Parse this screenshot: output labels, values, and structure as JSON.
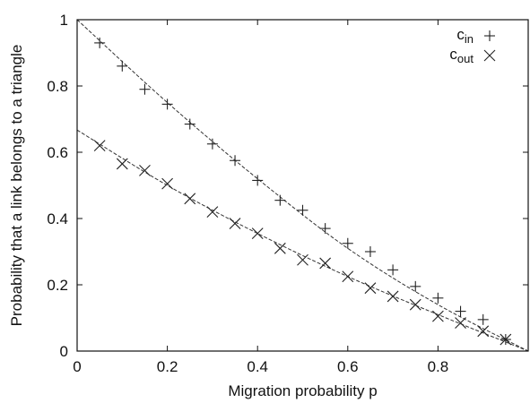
{
  "chart_data": {
    "type": "scatter",
    "title": "",
    "xlabel": "Migration probability p",
    "ylabel": "Probability that a link belongs to a triangle",
    "xlim": [
      0,
      1
    ],
    "ylim": [
      0,
      1
    ],
    "x_ticks": [
      "0",
      "0.2",
      "0.4",
      "0.6",
      "0.8"
    ],
    "y_ticks": [
      "0",
      "0.2",
      "0.4",
      "0.6",
      "0.8",
      "1"
    ],
    "legend_position": "top-right",
    "grid": false,
    "series": [
      {
        "name": "c_in",
        "legend_main": "c",
        "legend_sub": "in",
        "marker": "plus",
        "x": [
          0.05,
          0.1,
          0.15,
          0.2,
          0.25,
          0.3,
          0.35,
          0.4,
          0.45,
          0.5,
          0.55,
          0.6,
          0.65,
          0.7,
          0.75,
          0.8,
          0.85,
          0.9,
          0.95
        ],
        "y": [
          0.93,
          0.86,
          0.79,
          0.745,
          0.685,
          0.625,
          0.575,
          0.515,
          0.455,
          0.425,
          0.37,
          0.325,
          0.3,
          0.245,
          0.195,
          0.16,
          0.12,
          0.095,
          0.035
        ],
        "fit": {
          "x": [
            0,
            0.2,
            0.4,
            0.6,
            0.8,
            1.0
          ],
          "y": [
            1.0,
            0.75,
            0.52,
            0.31,
            0.14,
            0.0
          ]
        }
      },
      {
        "name": "c_out",
        "legend_main": "c",
        "legend_sub": "out",
        "marker": "cross",
        "x": [
          0.05,
          0.1,
          0.15,
          0.2,
          0.25,
          0.3,
          0.35,
          0.4,
          0.45,
          0.5,
          0.55,
          0.6,
          0.65,
          0.7,
          0.75,
          0.8,
          0.85,
          0.9,
          0.95
        ],
        "y": [
          0.62,
          0.565,
          0.545,
          0.505,
          0.46,
          0.42,
          0.385,
          0.355,
          0.31,
          0.275,
          0.265,
          0.225,
          0.19,
          0.165,
          0.14,
          0.105,
          0.085,
          0.06,
          0.035
        ],
        "fit": {
          "x": [
            0,
            0.2,
            0.4,
            0.6,
            0.8,
            1.0
          ],
          "y": [
            0.667,
            0.5,
            0.355,
            0.225,
            0.11,
            0.0
          ]
        }
      }
    ]
  }
}
